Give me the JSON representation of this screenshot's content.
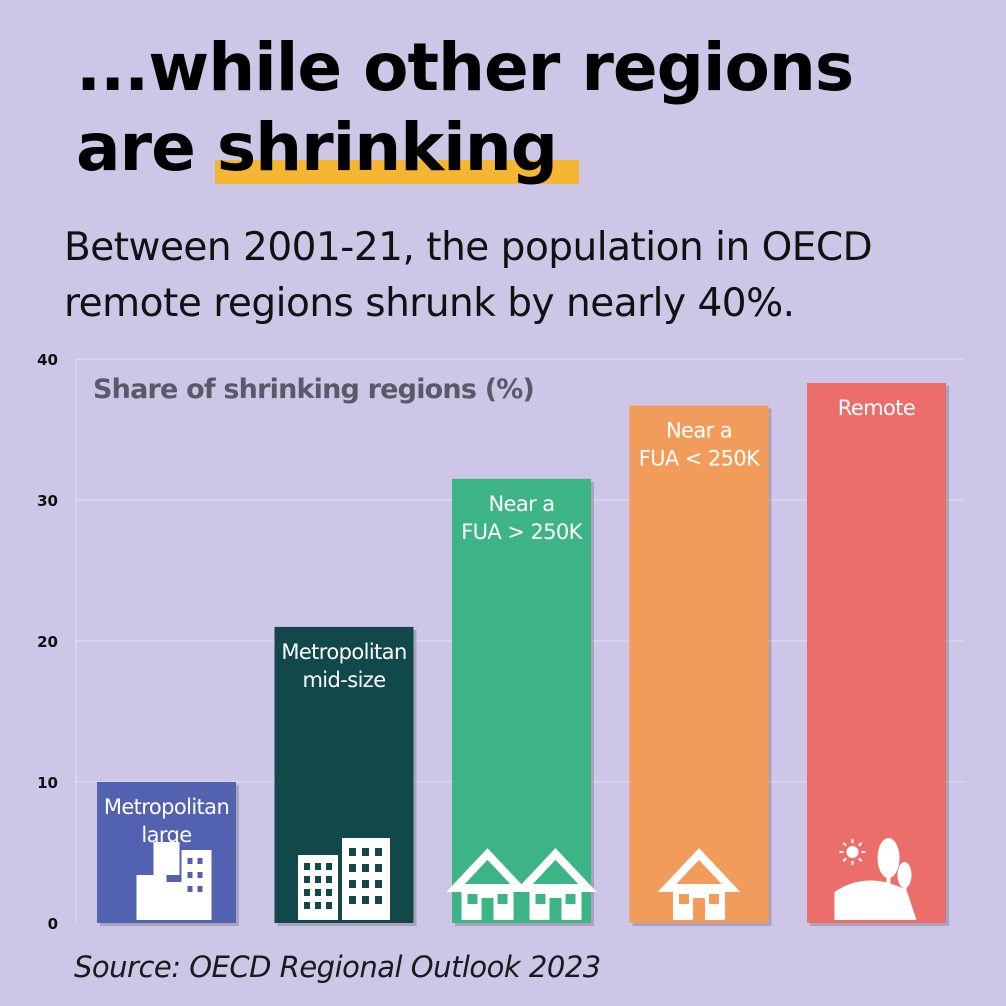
{
  "headline": {
    "line1": "...while other regions",
    "line2_prefix": "are ",
    "line2_highlight": "shrinking"
  },
  "subtitle": {
    "line1": "Between 2001-21, the population in OECD",
    "line2": "remote regions shrunk by nearly 40%."
  },
  "source": "Source: OECD Regional Outlook 2023",
  "colors": {
    "background": "#cdc6e6",
    "highlight": "#f5b731",
    "metropolitan_large": "#5262b0",
    "metropolitan_mid": "#11484a",
    "near_fua_large": "#3db485",
    "near_fua_small": "#f29c5c",
    "remote": "#ec6e6b"
  },
  "chart_data": {
    "type": "bar",
    "title": "Share of shrinking regions (%)",
    "xlabel": "",
    "ylabel": "",
    "ylim": [
      0,
      40
    ],
    "yticks": [
      0,
      10,
      20,
      30,
      40
    ],
    "grid": true,
    "categories": [
      "Metropolitan large",
      "Metropolitan mid-size",
      "Near a FUA > 250K",
      "Near a FUA < 250K",
      "Remote"
    ],
    "bar_labels": [
      [
        "Metropolitan",
        "large"
      ],
      [
        "Metropolitan",
        "mid-size"
      ],
      [
        "Near a",
        "FUA > 250K"
      ],
      [
        "Near a",
        "FUA < 250K"
      ],
      [
        "Remote"
      ]
    ],
    "values": [
      10,
      21,
      31.5,
      36.7,
      38.3
    ],
    "bar_colors": [
      "#5262b0",
      "#11484a",
      "#3db485",
      "#f29c5c",
      "#ec6e6b"
    ],
    "icons": [
      "city-buildings-icon",
      "apartment-buildings-icon",
      "two-houses-icon",
      "house-icon",
      "countryside-trees-icon"
    ]
  }
}
